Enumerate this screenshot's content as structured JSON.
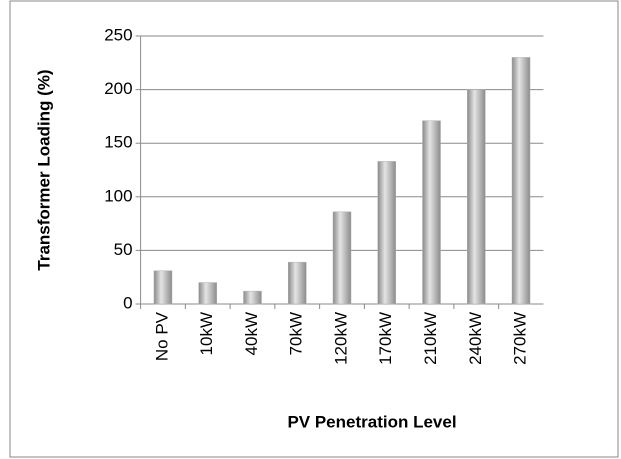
{
  "chart_data": {
    "type": "bar",
    "xlabel": "PV Penetration Level",
    "ylabel": "Transformer Loading (%)",
    "categories": [
      "No PV",
      "10kW",
      "40kW",
      "70kW",
      "120kW",
      "170kW",
      "210kW",
      "240kW",
      "270kW"
    ],
    "values": [
      31,
      20,
      12,
      39,
      86,
      133,
      171,
      200,
      230
    ],
    "color": "#b0b0b0",
    "ylim": [
      0,
      250
    ],
    "yticks": [
      0,
      50,
      100,
      150,
      200,
      250
    ],
    "grid": true
  }
}
